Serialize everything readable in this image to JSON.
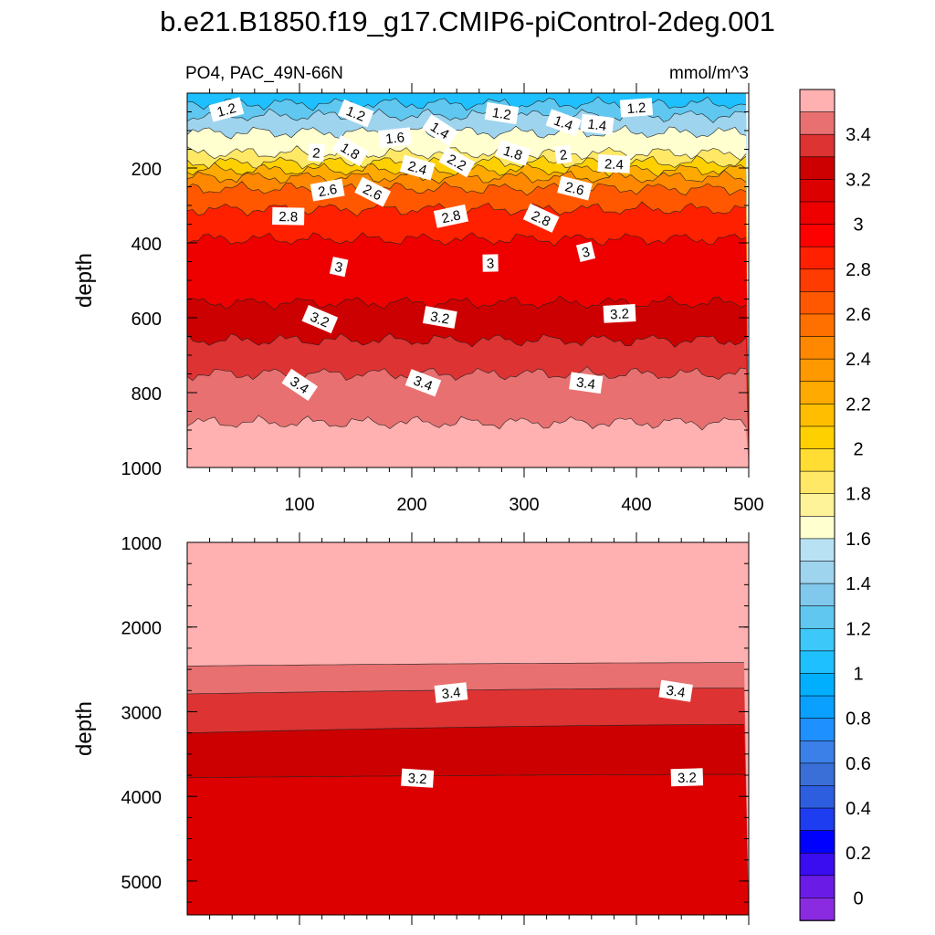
{
  "title": "b.e21.B1850.f19_g17.CMIP6-piControl-2deg.001",
  "chart_data": {
    "type": "contour",
    "variable": "PO4",
    "region": "PAC_49N-66N",
    "units": "mmol/m^3",
    "xlabel": "",
    "ylabel": "depth",
    "x_range": [
      0,
      500
    ],
    "x_ticks": [
      100,
      200,
      300,
      400,
      500
    ],
    "colorbar": {
      "levels": [
        0,
        0.1,
        0.2,
        0.3,
        0.4,
        0.5,
        0.6,
        0.7,
        0.8,
        0.9,
        1.0,
        1.1,
        1.2,
        1.3,
        1.4,
        1.5,
        1.6,
        1.7,
        1.8,
        1.9,
        2.0,
        2.1,
        2.2,
        2.3,
        2.4,
        2.5,
        2.6,
        2.7,
        2.8,
        2.9,
        3.0,
        3.1,
        3.2,
        3.3,
        3.4,
        3.5
      ],
      "tick_labels": [
        "0",
        "0.2",
        "0.4",
        "0.6",
        "0.8",
        "1",
        "1.2",
        "1.4",
        "1.6",
        "1.8",
        "2",
        "2.2",
        "2.4",
        "2.6",
        "2.8",
        "3",
        "3.2",
        "3.4"
      ],
      "colors": [
        "#8a2be2",
        "#6a1ce6",
        "#3a0cf0",
        "#0000ff",
        "#1e3cf0",
        "#2e5ee0",
        "#3a6fd8",
        "#3a80e8",
        "#1e90ff",
        "#0aa0ff",
        "#00b0ff",
        "#1ec0ff",
        "#3cc8f8",
        "#60c8f0",
        "#80c8ec",
        "#9ed4ee",
        "#b8e2f4",
        "#ffffd0",
        "#fff39a",
        "#ffe866",
        "#ffdd33",
        "#ffd000",
        "#ffbf00",
        "#ffaa00",
        "#ff9900",
        "#ff8800",
        "#ff7000",
        "#ff5800",
        "#ff3c00",
        "#ff2000",
        "#ff0000",
        "#ee0000",
        "#dd0000",
        "#cc0000",
        "#dd3333",
        "#e87070",
        "#ffb0b0"
      ]
    },
    "panels": [
      {
        "name": "upper",
        "depth_range": [
          0,
          1000
        ],
        "y_ticks": [
          200,
          400,
          600,
          800,
          1000
        ],
        "contour_depths": {
          "1.0": 0,
          "1.2": 28,
          "1.4": 60,
          "1.6": 105,
          "1.8": 160,
          "2.0": 185,
          "2.2": 205,
          "2.4": 225,
          "2.6": 255,
          "2.8": 310,
          "3.0": 390,
          "3.2": 560,
          "3.3": 660,
          "3.4": 750,
          "3.5": 880
        },
        "labels": [
          {
            "v": "1.2",
            "x": 35,
            "d": 45
          },
          {
            "v": "1.2",
            "x": 150,
            "d": 55
          },
          {
            "v": "1.2",
            "x": 280,
            "d": 55
          },
          {
            "v": "1.2",
            "x": 400,
            "d": 40
          },
          {
            "v": "1.4",
            "x": 225,
            "d": 100
          },
          {
            "v": "1.4",
            "x": 335,
            "d": 80
          },
          {
            "v": "1.4",
            "x": 365,
            "d": 85
          },
          {
            "v": "1.6",
            "x": 185,
            "d": 120
          },
          {
            "v": "1.8",
            "x": 145,
            "d": 155
          },
          {
            "v": "1.8",
            "x": 290,
            "d": 160
          },
          {
            "v": "2",
            "x": 115,
            "d": 160
          },
          {
            "v": "2",
            "x": 335,
            "d": 165
          },
          {
            "v": "2.2",
            "x": 240,
            "d": 185
          },
          {
            "v": "2.4",
            "x": 205,
            "d": 200
          },
          {
            "v": "2.4",
            "x": 380,
            "d": 190
          },
          {
            "v": "2.6",
            "x": 125,
            "d": 260
          },
          {
            "v": "2.6",
            "x": 165,
            "d": 265
          },
          {
            "v": "2.6",
            "x": 345,
            "d": 255
          },
          {
            "v": "2.8",
            "x": 90,
            "d": 330
          },
          {
            "v": "2.8",
            "x": 235,
            "d": 330
          },
          {
            "v": "2.8",
            "x": 315,
            "d": 335
          },
          {
            "v": "3",
            "x": 135,
            "d": 465
          },
          {
            "v": "3",
            "x": 270,
            "d": 455
          },
          {
            "v": "3",
            "x": 355,
            "d": 425
          },
          {
            "v": "3.2",
            "x": 118,
            "d": 605
          },
          {
            "v": "3.2",
            "x": 225,
            "d": 600
          },
          {
            "v": "3.2",
            "x": 385,
            "d": 590
          },
          {
            "v": "3.4",
            "x": 100,
            "d": 780
          },
          {
            "v": "3.4",
            "x": 210,
            "d": 775
          },
          {
            "v": "3.4",
            "x": 355,
            "d": 775
          }
        ]
      },
      {
        "name": "lower",
        "depth_range": [
          1000,
          5400
        ],
        "y_ticks": [
          1000,
          2000,
          3000,
          4000,
          5000
        ],
        "bands": [
          {
            "v": "3.5",
            "from": 1000,
            "left": 2460,
            "right": 2420
          },
          {
            "v": "3.4",
            "left": 2790,
            "right": 2720
          },
          {
            "v": "3.3",
            "left": 3250,
            "right": 3150
          },
          {
            "v": "3.2",
            "left": 3780,
            "right": 3740
          }
        ],
        "labels": [
          {
            "v": "3.4",
            "x": 235,
            "d": 2780
          },
          {
            "v": "3.4",
            "x": 435,
            "d": 2760
          },
          {
            "v": "3.2",
            "x": 205,
            "d": 3790
          },
          {
            "v": "3.2",
            "x": 445,
            "d": 3780
          }
        ]
      }
    ]
  }
}
